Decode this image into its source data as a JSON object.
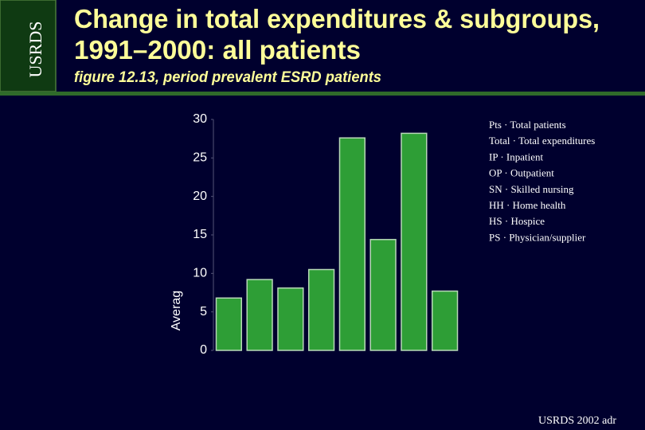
{
  "header": {
    "logo": "USRDS",
    "title": [
      "Change in total expenditures & subgroups,",
      "1991–2000: all patients"
    ],
    "subtitle": "figure 12.13, period prevalent ESRD patients"
  },
  "key": [
    "Pts · Total patients",
    "Total · Total expenditures",
    "IP · Inpatient",
    "OP · Outpatient",
    "SN · Skilled nursing",
    "HH · Home health",
    "HS · Hospice",
    "PS · Physician/supplier"
  ],
  "footer": "USRDS 2002 adr",
  "chart_data": {
    "type": "bar",
    "y_label": "Averag",
    "categories": [
      null,
      null,
      null,
      null,
      null,
      null,
      null,
      null
    ],
    "values": [
      6.8,
      9.2,
      8.1,
      10.5,
      27.6,
      14.4,
      28.2,
      7.7
    ],
    "color": "#2e9e36",
    "ylim": [
      0,
      30
    ],
    "yticks": [
      0,
      5,
      10,
      15,
      20,
      25,
      30
    ],
    "grid": false
  }
}
